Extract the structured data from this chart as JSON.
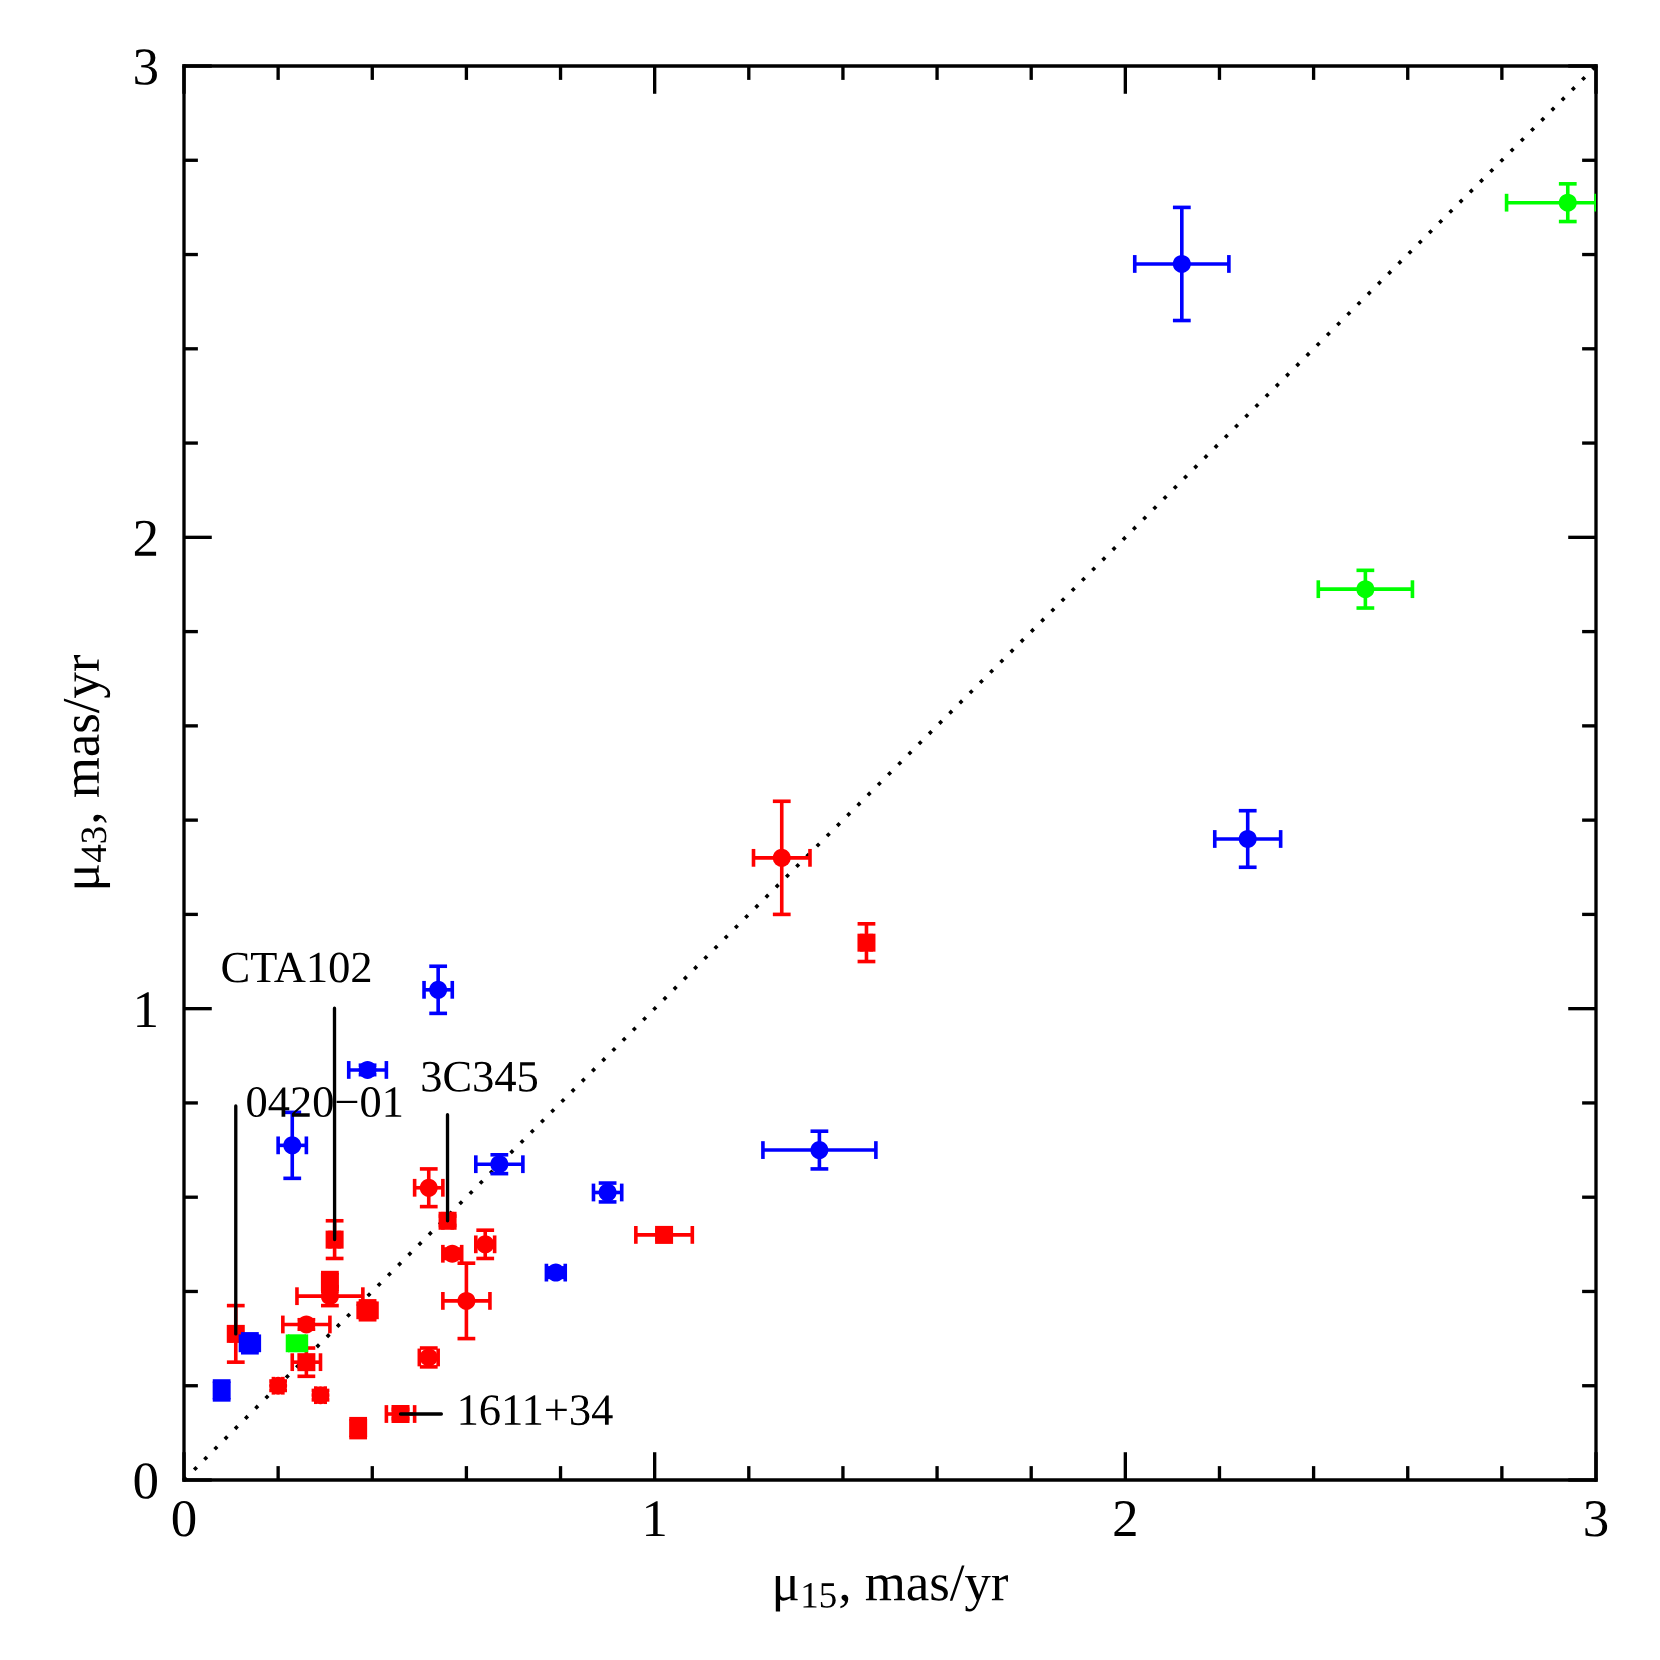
{
  "chart_data": {
    "type": "scatter",
    "xlabel": "μ$_{15}$, mas/yr",
    "ylabel": "μ$_{43}$, mas/yr",
    "xlim": [
      0,
      3
    ],
    "ylim": [
      0,
      3
    ],
    "xticks": [
      0,
      {
        "value": 0.2,
        "label": null
      },
      {
        "value": 0.4,
        "label": null
      },
      {
        "value": 0.6,
        "label": null
      },
      {
        "value": 0.8,
        "label": null
      },
      1,
      {
        "value": 1.2,
        "label": null
      },
      {
        "value": 1.4,
        "label": null
      },
      {
        "value": 1.6,
        "label": null
      },
      {
        "value": 1.8,
        "label": null
      },
      2,
      {
        "value": 2.2,
        "label": null
      },
      {
        "value": 2.4,
        "label": null
      },
      {
        "value": 2.6,
        "label": null
      },
      {
        "value": 2.8,
        "label": null
      },
      3
    ],
    "yticks": [
      0,
      {
        "value": 0.2,
        "label": null
      },
      {
        "value": 0.4,
        "label": null
      },
      {
        "value": 0.6,
        "label": null
      },
      {
        "value": 0.8,
        "label": null
      },
      1,
      {
        "value": 1.2,
        "label": null
      },
      {
        "value": 1.4,
        "label": null
      },
      {
        "value": 1.6,
        "label": null
      },
      {
        "value": 1.8,
        "label": null
      },
      2,
      {
        "value": 2.2,
        "label": null
      },
      {
        "value": 2.4,
        "label": null
      },
      {
        "value": 2.6,
        "label": null
      },
      {
        "value": 2.8,
        "label": null
      },
      3
    ],
    "series": [
      {
        "type": "line",
        "color": "#000000",
        "line_style": "dotted",
        "marker": "none",
        "x": [
          0,
          3
        ],
        "values": [
          0,
          3
        ]
      },
      {
        "color": "#ff0000",
        "marker": "circle",
        "x": [
          0.26,
          0.2,
          0.29,
          0.52,
          0.31,
          0.6,
          0.52,
          0.57,
          0.64,
          1.27
        ],
        "values": [
          0.33,
          0.2,
          0.18,
          0.26,
          0.39,
          0.38,
          0.62,
          0.48,
          0.5,
          1.32
        ],
        "xerrors": [
          0.05,
          0.01,
          0.01,
          0.02,
          0.07,
          0.05,
          0.03,
          0.02,
          0.02,
          0.06
        ],
        "errors": [
          0.01,
          0.01,
          0.01,
          0.02,
          0.02,
          0.08,
          0.04,
          0.01,
          0.03,
          0.12
        ]
      },
      {
        "color": "#ff0000",
        "marker": "square",
        "x": [
          0.11,
          0.26,
          0.37,
          0.46,
          0.32,
          0.31,
          0.39,
          0.56,
          1.02,
          1.45
        ],
        "values": [
          0.31,
          0.25,
          0.11,
          0.14,
          0.51,
          0.42,
          0.36,
          0.55,
          0.52,
          1.14
        ],
        "xerrors": [
          0.01,
          0.03,
          0.01,
          0.03,
          0.01,
          0.01,
          0.02,
          0.01,
          0.06,
          0.01
        ],
        "errors": [
          0.06,
          0.03,
          0.02,
          0.01,
          0.04,
          0.02,
          0.02,
          0.01,
          0.01,
          0.04
        ]
      },
      {
        "color": "#0000ff",
        "marker": "circle",
        "x": [
          0.23,
          0.39,
          0.54,
          0.67,
          0.9,
          0.79,
          1.35,
          2.26,
          2.12
        ],
        "values": [
          0.71,
          0.87,
          1.04,
          0.67,
          0.61,
          0.44,
          0.7,
          1.36,
          2.58
        ],
        "xerrors": [
          0.03,
          0.04,
          0.03,
          0.05,
          0.03,
          0.02,
          0.12,
          0.07,
          0.1
        ],
        "errors": [
          0.07,
          0.01,
          0.05,
          0.02,
          0.02,
          0.01,
          0.04,
          0.06,
          0.12
        ]
      },
      {
        "color": "#0000ff",
        "marker": "square",
        "x": [
          0.08,
          0.14
        ],
        "values": [
          0.19,
          0.29
        ],
        "xerrors": [
          0.01,
          0.02
        ],
        "errors": [
          0.02,
          0.02
        ]
      },
      {
        "color": "#00ff00",
        "marker": "circle",
        "x": [
          2.94,
          2.51
        ],
        "values": [
          2.71,
          1.89
        ],
        "xerrors": [
          [
            2.81,
            3.0
          ],
          0.1
        ],
        "errors": [
          0.04,
          0.04
        ]
      },
      {
        "color": "#00ff00",
        "marker": "square",
        "x": [
          0.24
        ],
        "values": [
          0.29
        ],
        "xerrors": [
          0.02
        ],
        "errors": [
          0.01
        ]
      }
    ],
    "annotations": [
      {
        "text": "CTA102",
        "x": 0.32,
        "y": 0.51
      },
      {
        "text": "0420−01",
        "x": 0.11,
        "y": 0.31
      },
      {
        "text": "3C345",
        "x": 0.56,
        "y": 0.55
      },
      {
        "text": "1611+34",
        "x": 0.46,
        "y": 0.14
      }
    ]
  }
}
